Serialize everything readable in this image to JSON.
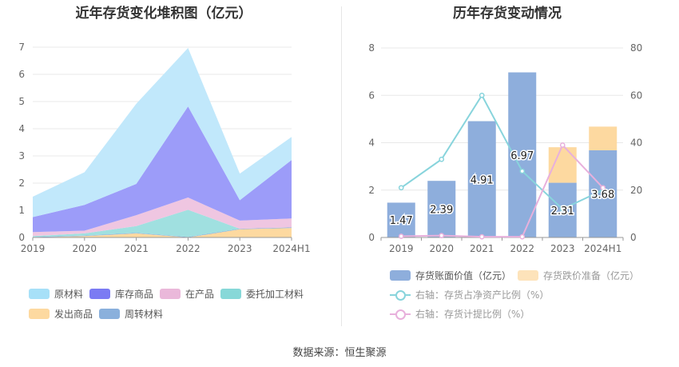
{
  "left_title": "近年存货变化堆积图（亿元）",
  "right_title": "历年存货变动情况",
  "source": "数据来源：恒生聚源",
  "chart_data": [
    {
      "type": "area",
      "stacked": true,
      "title": "近年存货变化堆积图（亿元）",
      "categories": [
        "2019",
        "2020",
        "2021",
        "2022",
        "2023",
        "2024H1"
      ],
      "ylim": [
        0,
        7
      ],
      "yticks": [
        "0",
        "1",
        "2",
        "3",
        "4",
        "5",
        "6",
        "7"
      ],
      "legend_position": "bottom",
      "series": [
        {
          "name": "发出商品",
          "color": "#fdd9a0",
          "values": [
            0.0,
            0.05,
            0.15,
            0.0,
            0.3,
            0.35
          ]
        },
        {
          "name": "周转材料",
          "color": "#8ab0dc",
          "values": [
            0.02,
            0.02,
            0.02,
            0.02,
            0.02,
            0.02
          ]
        },
        {
          "name": "委托加工材料",
          "color": "#a0e0e0",
          "values": [
            0.03,
            0.08,
            0.25,
            1.0,
            0.0,
            0.0
          ]
        },
        {
          "name": "在产品",
          "color": "#efc6e1",
          "values": [
            0.15,
            0.1,
            0.4,
            0.45,
            0.3,
            0.33
          ]
        },
        {
          "name": "库存商品",
          "color": "#9c9cf9",
          "values": [
            0.55,
            0.95,
            1.15,
            3.35,
            0.75,
            2.15
          ]
        },
        {
          "name": "原材料",
          "color": "#c1e8fb",
          "values": [
            0.75,
            1.2,
            2.95,
            2.15,
            0.98,
            0.85
          ]
        }
      ],
      "legend": [
        {
          "name": "原材料",
          "color": "#a7e0f8"
        },
        {
          "name": "库存商品",
          "color": "#7b7bf3"
        },
        {
          "name": "在产品",
          "color": "#eab8da"
        },
        {
          "name": "委托加工材料",
          "color": "#87d8d8"
        },
        {
          "name": "发出商品",
          "color": "#fdd9a0"
        },
        {
          "name": "周转材料",
          "color": "#8ab0dc"
        }
      ]
    },
    {
      "type": "bar",
      "stacked": true,
      "title": "历年存货变动情况",
      "categories": [
        "2019",
        "2020",
        "2021",
        "2022",
        "2023",
        "2024H1"
      ],
      "ylim": [
        0,
        8
      ],
      "yticks": [
        "0",
        "2",
        "4",
        "6",
        "8"
      ],
      "y2lim": [
        0,
        80
      ],
      "y2ticks": [
        "0",
        "20",
        "40",
        "60",
        "80"
      ],
      "legend_position": "bottom",
      "series": [
        {
          "name": "存货账面价值（亿元）",
          "color": "#8eaedc",
          "values": [
            1.47,
            2.39,
            4.91,
            6.97,
            2.31,
            3.68
          ],
          "labels": [
            "1.47",
            "2.39",
            "4.91",
            "6.97",
            "2.31",
            "3.68"
          ]
        },
        {
          "name": "存货跌价准备（亿元）",
          "color": "#fdd9a0",
          "values": [
            0,
            0,
            0,
            0,
            1.5,
            1.0
          ]
        }
      ],
      "lines": [
        {
          "name": "右轴：存货占净资产比例（%）",
          "color": "#88d4dc",
          "values": [
            21,
            33,
            60,
            28,
            12,
            20
          ]
        },
        {
          "name": "右轴：存货计提比例（%）",
          "color": "#e8b0dc",
          "values": [
            0.5,
            0.8,
            0.3,
            0.3,
            39,
            21
          ]
        }
      ]
    }
  ]
}
